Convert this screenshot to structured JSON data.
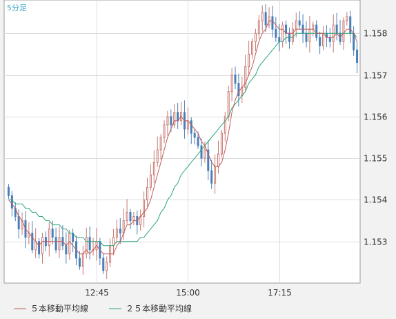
{
  "chart_data": {
    "type": "candlestick",
    "timeframe_label": "5分足",
    "x_tick_labels": [
      "12:45",
      "15:00",
      "17:15"
    ],
    "y_tick_labels": [
      "1.153",
      "1.154",
      "1.155",
      "1.156",
      "1.157",
      "1.158"
    ],
    "y_ticks": [
      1.153,
      1.154,
      1.155,
      1.156,
      1.157,
      1.158
    ],
    "ylim": [
      1.152,
      1.1588
    ],
    "grid": true,
    "legend_position": "bottom-left",
    "colors": {
      "up_candle": "#c87870",
      "down_candle": "#4a7eb8",
      "ma5": "#c05a5a",
      "ma25": "#2aa67a",
      "background": "#ffffff",
      "grid": "#dcdcdc"
    },
    "series": [
      {
        "name": "５本移動平均線",
        "color": "#c05a5a"
      },
      {
        "name": "２５本移動平均線",
        "color": "#2aa67a"
      }
    ],
    "closes": [
      1.1541,
      1.1538,
      1.1536,
      1.1533,
      1.1535,
      1.1531,
      1.1532,
      1.1528,
      1.153,
      1.1527,
      1.1531,
      1.1529,
      1.1533,
      1.1531,
      1.1528,
      1.1531,
      1.1529,
      1.1527,
      1.1532,
      1.153,
      1.1526,
      1.1524,
      1.1527,
      1.1531,
      1.1528,
      1.1528,
      1.153,
      1.1526,
      1.1523,
      1.1525,
      1.1529,
      1.1531,
      1.1533,
      1.1532,
      1.1535,
      1.1537,
      1.1535,
      1.1536,
      1.1534,
      1.1536,
      1.154,
      1.1543,
      1.1546,
      1.1549,
      1.1552,
      1.1555,
      1.1558,
      1.156,
      1.1558,
      1.1561,
      1.1559,
      1.1561,
      1.1557,
      1.1559,
      1.1556,
      1.1555,
      1.1553,
      1.155,
      1.1552,
      1.1547,
      1.1544,
      1.1548,
      1.1551,
      1.1556,
      1.156,
      1.1566,
      1.157,
      1.1568,
      1.1565,
      1.1567,
      1.1572,
      1.1575,
      1.1578,
      1.158,
      1.1583,
      1.1585,
      1.1582,
      1.1584,
      1.1581,
      1.1579,
      1.1578,
      1.1582,
      1.158,
      1.1578,
      1.1581,
      1.1583,
      1.1582,
      1.158,
      1.1578,
      1.1581,
      1.1582,
      1.1579,
      1.1577,
      1.158,
      1.1579,
      1.1578,
      1.1582,
      1.158,
      1.1578,
      1.1583,
      1.1584,
      1.158,
      1.1576,
      1.1573
    ],
    "ma5": [
      1.154,
      1.1539,
      1.1538,
      1.1536,
      1.1535,
      1.1533,
      1.1532,
      1.1531,
      1.153,
      1.1529,
      1.153,
      1.153,
      1.153,
      1.153,
      1.153,
      1.153,
      1.153,
      1.1529,
      1.153,
      1.1529,
      1.1528,
      1.1527,
      1.1527,
      1.1528,
      1.1527,
      1.1528,
      1.1529,
      1.1528,
      1.1527,
      1.1527,
      1.1527,
      1.1527,
      1.1529,
      1.153,
      1.1532,
      1.1534,
      1.1534,
      1.1535,
      1.1535,
      1.1536,
      1.1537,
      1.1538,
      1.154,
      1.1543,
      1.1546,
      1.1549,
      1.1552,
      1.1555,
      1.1557,
      1.1559,
      1.1559,
      1.156,
      1.1559,
      1.1559,
      1.1558,
      1.1557,
      1.1556,
      1.1554,
      1.1553,
      1.1551,
      1.1549,
      1.1548,
      1.1548,
      1.1549,
      1.1552,
      1.1556,
      1.1561,
      1.1564,
      1.1566,
      1.1567,
      1.1568,
      1.157,
      1.1572,
      1.1575,
      1.1578,
      1.158,
      1.1581,
      1.1583,
      1.1583,
      1.1582,
      1.1581,
      1.1581,
      1.158,
      1.158,
      1.158,
      1.1581,
      1.1581,
      1.1581,
      1.1581,
      1.1581,
      1.1581,
      1.158,
      1.158,
      1.158,
      1.1579,
      1.1579,
      1.1579,
      1.158,
      1.1579,
      1.158,
      1.1581,
      1.1581,
      1.158,
      1.1578
    ],
    "ma25": [
      1.154,
      1.154,
      1.1539,
      1.1539,
      1.1539,
      1.1538,
      1.1538,
      1.1537,
      1.1537,
      1.1536,
      1.1536,
      1.1535,
      1.1535,
      1.1534,
      1.1534,
      1.1534,
      1.1533,
      1.1533,
      1.1532,
      1.1532,
      1.1531,
      1.1531,
      1.1531,
      1.153,
      1.153,
      1.153,
      1.153,
      1.153,
      1.1529,
      1.1529,
      1.1529,
      1.1529,
      1.153,
      1.153,
      1.153,
      1.153,
      1.153,
      1.153,
      1.153,
      1.1531,
      1.1531,
      1.1532,
      1.1533,
      1.1534,
      1.1535,
      1.1537,
      1.1538,
      1.154,
      1.1541,
      1.1543,
      1.1544,
      1.1546,
      1.1547,
      1.1548,
      1.1549,
      1.155,
      1.1551,
      1.1552,
      1.1553,
      1.1554,
      1.1555,
      1.1556,
      1.1557,
      1.1558,
      1.1559,
      1.156,
      1.1562,
      1.1563,
      1.1564,
      1.1565,
      1.1566,
      1.1568,
      1.1569,
      1.157,
      1.1572,
      1.1573,
      1.1574,
      1.1575,
      1.1576,
      1.1577,
      1.1578,
      1.1578,
      1.1579,
      1.1579,
      1.1579,
      1.158,
      1.158,
      1.158,
      1.158,
      1.158,
      1.158,
      1.158,
      1.158,
      1.158,
      1.158,
      1.158,
      1.158,
      1.158,
      1.158,
      1.158,
      1.158,
      1.158,
      1.158,
      1.1579
    ]
  }
}
